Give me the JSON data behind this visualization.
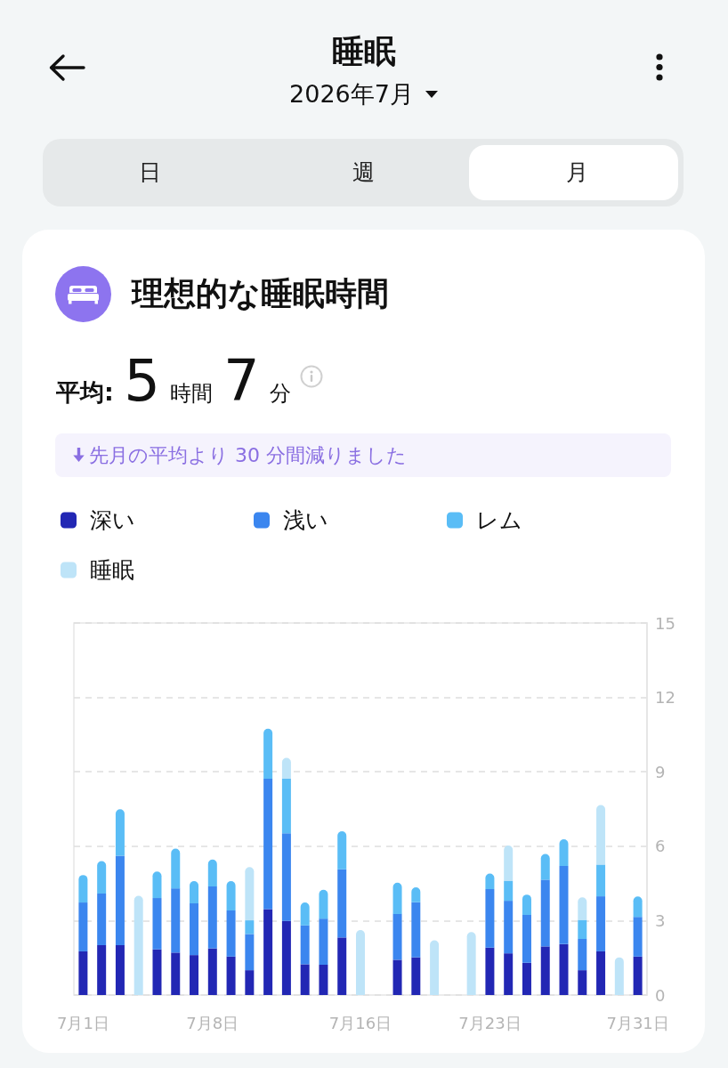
{
  "chart_data": {
    "type": "bar",
    "stacked": true,
    "title": "睡眠",
    "subtitle": "2026年7月",
    "annotations": [
      "日",
      "週",
      "月",
      "理想的な睡眠時間",
      "平均: 5 時間 7 分",
      "先月の平均より 30 分間減りました"
    ],
    "categories": [
      "7月1日",
      null,
      null,
      null,
      null,
      null,
      null,
      "7月8日",
      null,
      null,
      null,
      null,
      null,
      null,
      null,
      "7月16日",
      null,
      null,
      null,
      null,
      null,
      null,
      "7月23日",
      null,
      null,
      null,
      null,
      null,
      null,
      null,
      "7月31日"
    ],
    "series": [
      {
        "name": "深い",
        "color": "#2227b4",
        "values": [
          1.76,
          2.01,
          2.01,
          null,
          1.84,
          1.71,
          1.61,
          1.88,
          1.55,
          1.0,
          3.46,
          2.99,
          1.24,
          1.22,
          2.32,
          null,
          null,
          1.42,
          1.52,
          null,
          null,
          null,
          1.91,
          1.68,
          1.3,
          1.96,
          2.05,
          1.0,
          1.76,
          null,
          1.55
        ]
      },
      {
        "name": "浅い",
        "color": "#3b86ef",
        "values": [
          1.97,
          2.08,
          3.61,
          null,
          2.07,
          2.59,
          2.09,
          2.5,
          1.86,
          1.46,
          5.26,
          3.53,
          1.57,
          1.86,
          2.75,
          null,
          null,
          1.85,
          2.22,
          null,
          null,
          null,
          2.36,
          2.12,
          1.93,
          2.69,
          3.15,
          1.26,
          2.22,
          null,
          1.6
        ]
      },
      {
        "name": "レム",
        "color": "#5abdf6",
        "values": [
          1.11,
          1.31,
          1.87,
          null,
          1.07,
          1.6,
          0.89,
          1.08,
          1.18,
          0.55,
          2.02,
          2.2,
          0.92,
          1.16,
          1.53,
          null,
          null,
          1.26,
          0.6,
          null,
          null,
          null,
          0.63,
          0.81,
          0.82,
          1.04,
          1.08,
          0.77,
          1.28,
          null,
          0.82
        ]
      },
      {
        "name": "睡眠",
        "color": "#bee4f8",
        "values": [
          null,
          null,
          null,
          4.0,
          null,
          null,
          null,
          null,
          null,
          2.15,
          null,
          0.84,
          null,
          null,
          null,
          2.62,
          null,
          null,
          null,
          2.21,
          null,
          2.54,
          null,
          1.42,
          null,
          null,
          null,
          0.91,
          2.4,
          1.52,
          null
        ]
      }
    ],
    "ylim": [
      0,
      15
    ],
    "yticks": [
      0,
      3,
      6,
      9,
      12,
      15
    ],
    "grid": "y",
    "legend": "top"
  }
}
